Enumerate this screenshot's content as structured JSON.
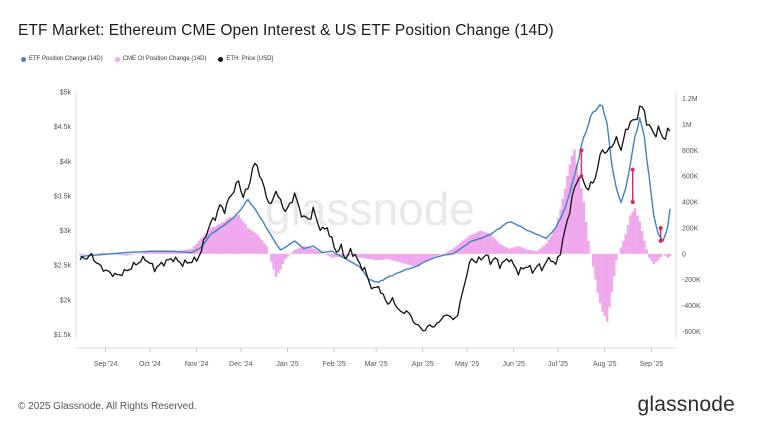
{
  "title": "ETF Market: Ethereum CME Open Interest & US ETF Position Change (14D)",
  "legend": [
    {
      "label": "ETF Position Change (14D)",
      "color": "#3b82c4"
    },
    {
      "label": "CME OI Position Change (14D)",
      "color": "#f0a8ec"
    },
    {
      "label": "ETH: Price [USD]",
      "color": "#111111"
    }
  ],
  "watermark": "glassnode",
  "footer": {
    "copyright": "© 2025 Glassnode. All Rights Reserved.",
    "brand": "glassnode"
  },
  "colors": {
    "etf": "#3b82c4",
    "cme": "#f0a8ec",
    "price": "#111111",
    "marker": "#e0245e"
  },
  "chart_data": {
    "type": "line",
    "x_tick_labels": [
      "Sep '24",
      "Oct '24",
      "Nov '24",
      "Dec '24",
      "Jan '25",
      "Feb '25",
      "Mar '25",
      "Apr '25",
      "May '25",
      "Jun '25",
      "Jul '25",
      "Aug '25",
      "Sep '25"
    ],
    "x_tick_index": [
      11,
      30,
      50,
      69,
      89,
      109,
      127,
      147,
      166,
      186,
      205,
      225,
      245
    ],
    "n_points": 254,
    "y_left": {
      "ticks": [
        "$1.5k",
        "$2k",
        "$2.5k",
        "$3k",
        "$3.5k",
        "$4k",
        "$4.5k",
        "$5k"
      ],
      "values": [
        1500,
        2000,
        2500,
        3000,
        3500,
        4000,
        4500,
        5000
      ],
      "min": 1450,
      "max": 5000
    },
    "y_right": {
      "ticks": [
        "-600K",
        "-400K",
        "-200K",
        "0",
        "200K",
        "400K",
        "600K",
        "800K",
        "1M",
        "1.2M"
      ],
      "values": [
        -600000,
        -400000,
        -200000,
        0,
        200000,
        400000,
        600000,
        800000,
        1000000,
        1200000
      ],
      "min": -650000,
      "max": 1250000
    },
    "grid": false,
    "legend_position": "top-left",
    "series": [
      {
        "name": "ETH: Price [USD]",
        "axis": "left",
        "style": "line",
        "keyframes": [
          [
            0,
            2580
          ],
          [
            5,
            2640
          ],
          [
            8,
            2500
          ],
          [
            12,
            2400
          ],
          [
            16,
            2350
          ],
          [
            20,
            2420
          ],
          [
            24,
            2520
          ],
          [
            28,
            2600
          ],
          [
            32,
            2450
          ],
          [
            36,
            2540
          ],
          [
            40,
            2600
          ],
          [
            44,
            2520
          ],
          [
            48,
            2560
          ],
          [
            50,
            2580
          ],
          [
            52,
            2700
          ],
          [
            54,
            2950
          ],
          [
            56,
            3100
          ],
          [
            58,
            3200
          ],
          [
            60,
            3350
          ],
          [
            62,
            3300
          ],
          [
            64,
            3450
          ],
          [
            66,
            3600
          ],
          [
            68,
            3700
          ],
          [
            70,
            3500
          ],
          [
            72,
            3600
          ],
          [
            74,
            3900
          ],
          [
            76,
            3950
          ],
          [
            78,
            3700
          ],
          [
            80,
            3500
          ],
          [
            82,
            3350
          ],
          [
            84,
            3600
          ],
          [
            86,
            3400
          ],
          [
            88,
            3300
          ],
          [
            90,
            3350
          ],
          [
            92,
            3550
          ],
          [
            94,
            3300
          ],
          [
            96,
            3200
          ],
          [
            98,
            3150
          ],
          [
            100,
            3300
          ],
          [
            102,
            3100
          ],
          [
            104,
            3000
          ],
          [
            106,
            3050
          ],
          [
            108,
            2850
          ],
          [
            110,
            2700
          ],
          [
            112,
            2750
          ],
          [
            114,
            2600
          ],
          [
            116,
            2700
          ],
          [
            118,
            2650
          ],
          [
            120,
            2500
          ],
          [
            122,
            2450
          ],
          [
            124,
            2250
          ],
          [
            126,
            2150
          ],
          [
            128,
            2200
          ],
          [
            130,
            2050
          ],
          [
            132,
            1950
          ],
          [
            134,
            2000
          ],
          [
            136,
            1900
          ],
          [
            138,
            1800
          ],
          [
            140,
            1850
          ],
          [
            142,
            1750
          ],
          [
            144,
            1650
          ],
          [
            146,
            1600
          ],
          [
            148,
            1550
          ],
          [
            150,
            1650
          ],
          [
            152,
            1600
          ],
          [
            154,
            1700
          ],
          [
            156,
            1750
          ],
          [
            158,
            1800
          ],
          [
            160,
            1700
          ],
          [
            162,
            1800
          ],
          [
            164,
            2100
          ],
          [
            166,
            2400
          ],
          [
            168,
            2600
          ],
          [
            170,
            2550
          ],
          [
            172,
            2600
          ],
          [
            174,
            2650
          ],
          [
            176,
            2550
          ],
          [
            178,
            2600
          ],
          [
            180,
            2500
          ],
          [
            182,
            2550
          ],
          [
            184,
            2600
          ],
          [
            186,
            2500
          ],
          [
            188,
            2400
          ],
          [
            190,
            2450
          ],
          [
            192,
            2500
          ],
          [
            194,
            2400
          ],
          [
            196,
            2500
          ],
          [
            198,
            2450
          ],
          [
            200,
            2550
          ],
          [
            202,
            2600
          ],
          [
            204,
            2500
          ],
          [
            206,
            2700
          ],
          [
            208,
            3000
          ],
          [
            210,
            3300
          ],
          [
            212,
            3600
          ],
          [
            214,
            3800
          ],
          [
            216,
            3700
          ],
          [
            218,
            3600
          ],
          [
            220,
            3700
          ],
          [
            222,
            3900
          ],
          [
            224,
            4200
          ],
          [
            226,
            4100
          ],
          [
            228,
            4250
          ],
          [
            230,
            4300
          ],
          [
            232,
            4200
          ],
          [
            234,
            4400
          ],
          [
            236,
            4600
          ],
          [
            238,
            4550
          ],
          [
            240,
            4800
          ],
          [
            242,
            4700
          ],
          [
            244,
            4500
          ],
          [
            246,
            4400
          ],
          [
            248,
            4450
          ],
          [
            250,
            4350
          ],
          [
            252,
            4400
          ],
          [
            253,
            4450
          ]
        ]
      },
      {
        "name": "ETF Position Change (14D)",
        "axis": "right",
        "style": "line",
        "keyframes": [
          [
            0,
            -20000
          ],
          [
            10,
            -5000
          ],
          [
            20,
            10000
          ],
          [
            30,
            20000
          ],
          [
            40,
            20000
          ],
          [
            48,
            10000
          ],
          [
            52,
            50000
          ],
          [
            56,
            150000
          ],
          [
            60,
            200000
          ],
          [
            64,
            250000
          ],
          [
            68,
            320000
          ],
          [
            72,
            420000
          ],
          [
            76,
            320000
          ],
          [
            80,
            200000
          ],
          [
            84,
            80000
          ],
          [
            86,
            30000
          ],
          [
            88,
            50000
          ],
          [
            92,
            100000
          ],
          [
            96,
            40000
          ],
          [
            100,
            60000
          ],
          [
            104,
            10000
          ],
          [
            108,
            20000
          ],
          [
            112,
            -20000
          ],
          [
            116,
            -60000
          ],
          [
            120,
            -100000
          ],
          [
            124,
            -200000
          ],
          [
            128,
            -220000
          ],
          [
            132,
            -180000
          ],
          [
            136,
            -150000
          ],
          [
            140,
            -120000
          ],
          [
            144,
            -100000
          ],
          [
            148,
            -60000
          ],
          [
            152,
            -30000
          ],
          [
            156,
            -10000
          ],
          [
            160,
            0
          ],
          [
            164,
            50000
          ],
          [
            168,
            100000
          ],
          [
            172,
            120000
          ],
          [
            176,
            150000
          ],
          [
            180,
            200000
          ],
          [
            184,
            250000
          ],
          [
            188,
            220000
          ],
          [
            192,
            180000
          ],
          [
            196,
            150000
          ],
          [
            200,
            120000
          ],
          [
            204,
            200000
          ],
          [
            208,
            350000
          ],
          [
            212,
            600000
          ],
          [
            216,
            900000
          ],
          [
            220,
            1100000
          ],
          [
            224,
            1150000
          ],
          [
            226,
            1000000
          ],
          [
            228,
            700000
          ],
          [
            230,
            500000
          ],
          [
            232,
            400000
          ],
          [
            234,
            500000
          ],
          [
            236,
            700000
          ],
          [
            238,
            900000
          ],
          [
            240,
            1050000
          ],
          [
            242,
            900000
          ],
          [
            244,
            600000
          ],
          [
            246,
            300000
          ],
          [
            248,
            150000
          ],
          [
            250,
            100000
          ],
          [
            252,
            200000
          ],
          [
            253,
            350000
          ]
        ]
      },
      {
        "name": "CME OI Position Change (14D)",
        "axis": "right",
        "style": "bars",
        "keyframes": [
          [
            0,
            -10000
          ],
          [
            10,
            10000
          ],
          [
            20,
            -15000
          ],
          [
            30,
            20000
          ],
          [
            40,
            15000
          ],
          [
            48,
            40000
          ],
          [
            52,
            120000
          ],
          [
            56,
            200000
          ],
          [
            60,
            230000
          ],
          [
            64,
            280000
          ],
          [
            68,
            300000
          ],
          [
            72,
            200000
          ],
          [
            76,
            150000
          ],
          [
            80,
            60000
          ],
          [
            82,
            -60000
          ],
          [
            84,
            -180000
          ],
          [
            86,
            -120000
          ],
          [
            88,
            -40000
          ],
          [
            92,
            30000
          ],
          [
            96,
            60000
          ],
          [
            100,
            40000
          ],
          [
            104,
            10000
          ],
          [
            108,
            -30000
          ],
          [
            112,
            -20000
          ],
          [
            116,
            -10000
          ],
          [
            120,
            -30000
          ],
          [
            124,
            -40000
          ],
          [
            128,
            -50000
          ],
          [
            132,
            -40000
          ],
          [
            136,
            -60000
          ],
          [
            140,
            -80000
          ],
          [
            144,
            -100000
          ],
          [
            148,
            -60000
          ],
          [
            152,
            -20000
          ],
          [
            156,
            0
          ],
          [
            160,
            40000
          ],
          [
            164,
            100000
          ],
          [
            168,
            150000
          ],
          [
            172,
            180000
          ],
          [
            176,
            150000
          ],
          [
            180,
            80000
          ],
          [
            184,
            40000
          ],
          [
            188,
            60000
          ],
          [
            192,
            30000
          ],
          [
            196,
            20000
          ],
          [
            200,
            80000
          ],
          [
            204,
            200000
          ],
          [
            208,
            500000
          ],
          [
            210,
            700000
          ],
          [
            212,
            800000
          ],
          [
            214,
            600000
          ],
          [
            216,
            400000
          ],
          [
            218,
            100000
          ],
          [
            220,
            -100000
          ],
          [
            222,
            -300000
          ],
          [
            224,
            -450000
          ],
          [
            226,
            -520000
          ],
          [
            228,
            -300000
          ],
          [
            230,
            -50000
          ],
          [
            232,
            50000
          ],
          [
            234,
            150000
          ],
          [
            236,
            300000
          ],
          [
            238,
            350000
          ],
          [
            240,
            250000
          ],
          [
            242,
            100000
          ],
          [
            244,
            -30000
          ],
          [
            246,
            -80000
          ],
          [
            248,
            -50000
          ],
          [
            250,
            0
          ],
          [
            252,
            -30000
          ],
          [
            253,
            -20000
          ]
        ]
      }
    ],
    "markers": [
      {
        "index": 215,
        "from": 800000,
        "to": 600000
      },
      {
        "index": 237,
        "from": 650000,
        "to": 400000
      },
      {
        "index": 249,
        "from": 200000,
        "to": 100000
      }
    ]
  }
}
